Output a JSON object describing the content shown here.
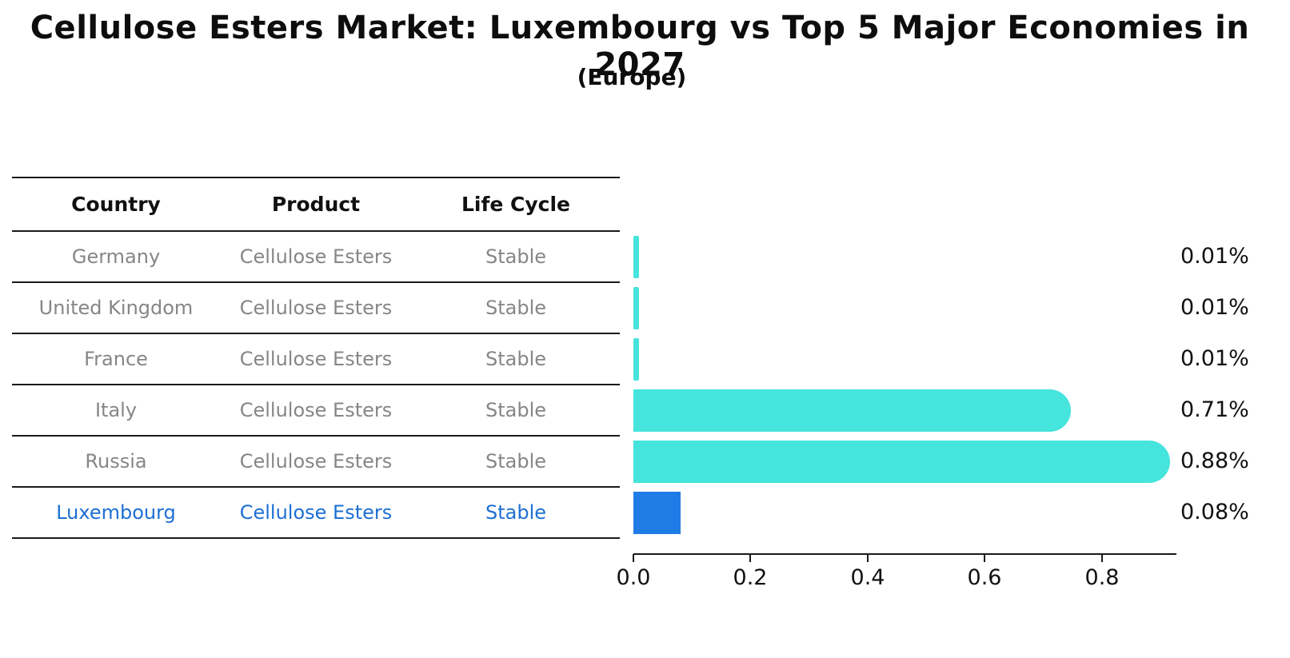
{
  "title": "Cellulose Esters Market: Luxembourg vs Top 5 Major Economies in 2027",
  "subtitle": "(Europe)",
  "table": {
    "headers": [
      "Country",
      "Product",
      "Life Cycle"
    ],
    "rows": [
      {
        "country": "Germany",
        "product": "Cellulose Esters",
        "life_cycle": "Stable",
        "value_label": "0.01%",
        "highlight": false
      },
      {
        "country": "United Kingdom",
        "product": "Cellulose Esters",
        "life_cycle": "Stable",
        "value_label": "0.01%",
        "highlight": false
      },
      {
        "country": "France",
        "product": "Cellulose Esters",
        "life_cycle": "Stable",
        "value_label": "0.01%",
        "highlight": false
      },
      {
        "country": "Italy",
        "product": "Cellulose Esters",
        "life_cycle": "Stable",
        "value_label": "0.71%",
        "highlight": false
      },
      {
        "country": "Russia",
        "product": "Cellulose Esters",
        "life_cycle": "Stable",
        "value_label": "0.88%",
        "highlight": false
      },
      {
        "country": "Luxembourg",
        "product": "Cellulose Esters",
        "life_cycle": "Stable",
        "value_label": "0.08%",
        "highlight": true
      }
    ]
  },
  "chart_data": {
    "type": "bar",
    "orientation": "horizontal",
    "title": "Cellulose Esters Market: Luxembourg vs Top 5 Major Economies in 2027",
    "subtitle": "(Europe)",
    "categories": [
      "Germany",
      "United Kingdom",
      "France",
      "Italy",
      "Russia",
      "Luxembourg"
    ],
    "values": [
      0.01,
      0.01,
      0.01,
      0.71,
      0.88,
      0.08
    ],
    "value_labels": [
      "0.01%",
      "0.01%",
      "0.01%",
      "0.71%",
      "0.88%",
      "0.08%"
    ],
    "xlabel": "",
    "ylabel": "",
    "xticks": [
      0.0,
      0.2,
      0.4,
      0.6,
      0.8
    ],
    "xtick_labels": [
      "0.0",
      "0.2",
      "0.4",
      "0.6",
      "0.8"
    ],
    "xlim": [
      0,
      0.927
    ],
    "grid": false,
    "legend": "none",
    "bar_color": "#45e4dc",
    "highlight_bar_color": "#1f7ce6",
    "highlight_category": "Luxembourg"
  },
  "colors": {
    "heading_text": "#0d0d0d",
    "table_row_text": "#868686",
    "highlight_text": "#1d6fd3",
    "bar_cyan": "#45e4dc",
    "bar_blue": "#1f7ce6",
    "line": "#1a1a1a"
  }
}
